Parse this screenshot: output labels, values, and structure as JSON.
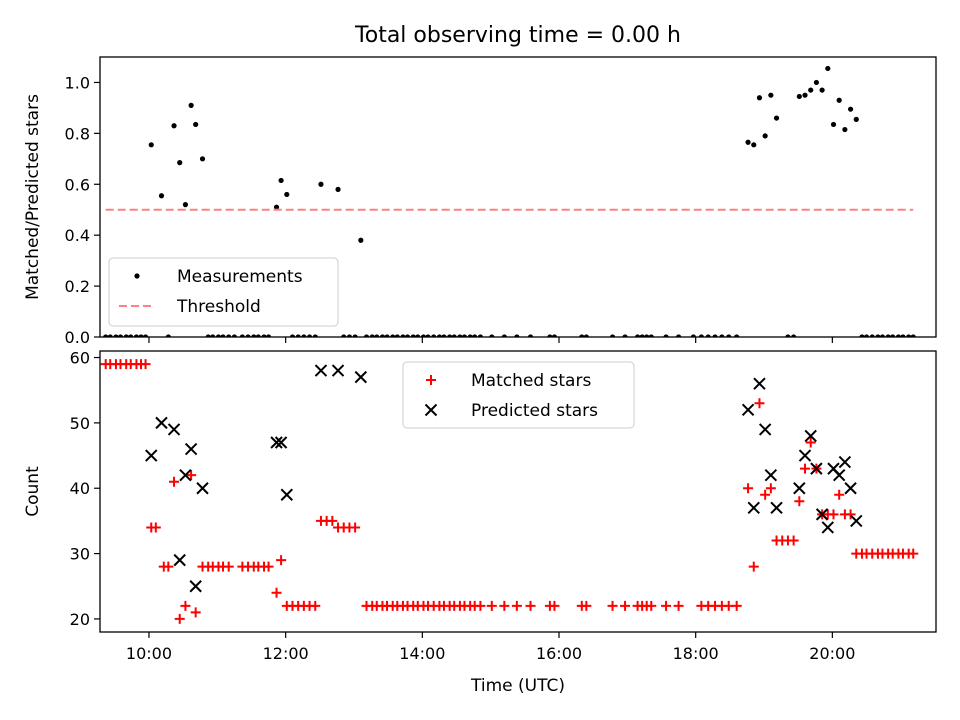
{
  "chart_data": [
    {
      "type": "scatter",
      "title": "Total observing time = 0.00 h",
      "xlabel": "",
      "ylabel": "Matched/Predicted stars",
      "xlim": [
        "09:17",
        "21:31"
      ],
      "ylim": [
        0,
        1.1
      ],
      "yticks": [
        "0.0",
        "0.2",
        "0.4",
        "0.6",
        "0.8",
        "1.0"
      ],
      "xticks": [
        "10:00",
        "12:00",
        "14:00",
        "16:00",
        "18:00",
        "20:00"
      ],
      "legend_position": "lower-left",
      "series": [
        {
          "name": "Measurements",
          "marker": "dot",
          "color": "#000000",
          "points": [
            [
              "10:02",
              0.755
            ],
            [
              "10:11",
              0.555
            ],
            [
              "10:22",
              0.83
            ],
            [
              "10:27",
              0.685
            ],
            [
              "10:32",
              0.52
            ],
            [
              "10:37",
              0.91
            ],
            [
              "10:41",
              0.835
            ],
            [
              "10:47",
              0.7
            ],
            [
              "11:52",
              0.51
            ],
            [
              "11:56",
              0.615
            ],
            [
              "12:01",
              0.56
            ],
            [
              "12:31",
              0.6
            ],
            [
              "12:46",
              0.58
            ],
            [
              "13:06",
              0.38
            ],
            [
              "18:46",
              0.765
            ],
            [
              "18:51",
              0.755
            ],
            [
              "18:56",
              0.94
            ],
            [
              "19:01",
              0.79
            ],
            [
              "19:06",
              0.95
            ],
            [
              "19:11",
              0.86
            ],
            [
              "19:31",
              0.945
            ],
            [
              "19:36",
              0.95
            ],
            [
              "19:41",
              0.97
            ],
            [
              "19:46",
              1.0
            ],
            [
              "19:51",
              0.97
            ],
            [
              "19:56",
              1.055
            ],
            [
              "20:01",
              0.835
            ],
            [
              "20:06",
              0.93
            ],
            [
              "20:11",
              0.815
            ],
            [
              "20:16",
              0.895
            ],
            [
              "20:21",
              0.855
            ]
          ],
          "zeros": [
            "09:22",
            "09:26",
            "09:31",
            "09:35",
            "09:40",
            "09:44",
            "09:49",
            "09:53",
            "09:57",
            "10:17",
            "10:52",
            "10:56",
            "11:01",
            "11:05",
            "11:10",
            "11:15",
            "11:22",
            "11:27",
            "11:32",
            "11:36",
            "11:41",
            "11:45",
            "12:06",
            "12:11",
            "12:16",
            "12:21",
            "12:26",
            "12:51",
            "12:56",
            "13:01",
            "13:11",
            "13:16",
            "13:20",
            "13:25",
            "13:29",
            "13:34",
            "13:38",
            "13:43",
            "13:47",
            "13:52",
            "13:56",
            "14:01",
            "14:05",
            "14:10",
            "14:15",
            "14:19",
            "14:24",
            "14:28",
            "14:33",
            "14:37",
            "14:42",
            "14:46",
            "14:51",
            "15:01",
            "15:12",
            "15:23",
            "15:35",
            "15:52",
            "15:56",
            "16:20",
            "16:24",
            "16:47",
            "16:58",
            "17:09",
            "17:13",
            "17:17",
            "17:21",
            "17:34",
            "17:45",
            "17:58",
            "18:05",
            "18:11",
            "18:17",
            "18:23",
            "18:29",
            "18:36",
            "19:21",
            "19:26",
            "20:26",
            "20:30",
            "20:35",
            "20:40",
            "20:44",
            "20:49",
            "20:53",
            "20:58",
            "21:02",
            "21:07",
            "21:11"
          ]
        },
        {
          "name": "Threshold",
          "line": "dashed",
          "color": "#ff8080",
          "y": 0.5,
          "x_range": [
            "09:22",
            "21:11"
          ]
        }
      ]
    },
    {
      "type": "scatter",
      "title": "",
      "xlabel": "Time (UTC)",
      "ylabel": "Count",
      "xlim": [
        "09:17",
        "21:31"
      ],
      "ylim": [
        18,
        61
      ],
      "yticks": [
        "20",
        "30",
        "40",
        "50",
        "60"
      ],
      "xticks": [
        "10:00",
        "12:00",
        "14:00",
        "16:00",
        "18:00",
        "20:00"
      ],
      "legend_position": "upper-center",
      "series": [
        {
          "name": "Matched stars",
          "marker": "plus",
          "color": "#ff0000",
          "points": [
            [
              "09:22",
              59
            ],
            [
              "09:26",
              59
            ],
            [
              "09:31",
              59
            ],
            [
              "09:35",
              59
            ],
            [
              "09:40",
              59
            ],
            [
              "09:44",
              59
            ],
            [
              "09:49",
              59
            ],
            [
              "09:53",
              59
            ],
            [
              "09:57",
              59
            ],
            [
              "10:02",
              34
            ],
            [
              "10:06",
              34
            ],
            [
              "10:13",
              28
            ],
            [
              "10:17",
              28
            ],
            [
              "10:22",
              41
            ],
            [
              "10:27",
              20
            ],
            [
              "10:32",
              22
            ],
            [
              "10:37",
              42
            ],
            [
              "10:41",
              21
            ],
            [
              "10:47",
              28
            ],
            [
              "10:52",
              28
            ],
            [
              "10:56",
              28
            ],
            [
              "11:01",
              28
            ],
            [
              "11:05",
              28
            ],
            [
              "11:10",
              28
            ],
            [
              "11:22",
              28
            ],
            [
              "11:27",
              28
            ],
            [
              "11:32",
              28
            ],
            [
              "11:36",
              28
            ],
            [
              "11:41",
              28
            ],
            [
              "11:45",
              28
            ],
            [
              "11:52",
              24
            ],
            [
              "11:56",
              29
            ],
            [
              "12:01",
              22
            ],
            [
              "12:06",
              22
            ],
            [
              "12:11",
              22
            ],
            [
              "12:16",
              22
            ],
            [
              "12:21",
              22
            ],
            [
              "12:26",
              22
            ],
            [
              "12:31",
              35
            ],
            [
              "12:36",
              35
            ],
            [
              "12:41",
              35
            ],
            [
              "12:46",
              34
            ],
            [
              "12:51",
              34
            ],
            [
              "12:56",
              34
            ],
            [
              "13:01",
              34
            ],
            [
              "13:11",
              22
            ],
            [
              "13:16",
              22
            ],
            [
              "13:20",
              22
            ],
            [
              "13:25",
              22
            ],
            [
              "13:29",
              22
            ],
            [
              "13:34",
              22
            ],
            [
              "13:38",
              22
            ],
            [
              "13:43",
              22
            ],
            [
              "13:47",
              22
            ],
            [
              "13:52",
              22
            ],
            [
              "13:56",
              22
            ],
            [
              "14:01",
              22
            ],
            [
              "14:05",
              22
            ],
            [
              "14:10",
              22
            ],
            [
              "14:15",
              22
            ],
            [
              "14:19",
              22
            ],
            [
              "14:24",
              22
            ],
            [
              "14:28",
              22
            ],
            [
              "14:33",
              22
            ],
            [
              "14:37",
              22
            ],
            [
              "14:42",
              22
            ],
            [
              "14:46",
              22
            ],
            [
              "14:51",
              22
            ],
            [
              "15:01",
              22
            ],
            [
              "15:12",
              22
            ],
            [
              "15:23",
              22
            ],
            [
              "15:35",
              22
            ],
            [
              "15:52",
              22
            ],
            [
              "15:56",
              22
            ],
            [
              "16:20",
              22
            ],
            [
              "16:24",
              22
            ],
            [
              "16:47",
              22
            ],
            [
              "16:58",
              22
            ],
            [
              "17:09",
              22
            ],
            [
              "17:13",
              22
            ],
            [
              "17:17",
              22
            ],
            [
              "17:21",
              22
            ],
            [
              "17:34",
              22
            ],
            [
              "17:45",
              22
            ],
            [
              "18:05",
              22
            ],
            [
              "18:11",
              22
            ],
            [
              "18:17",
              22
            ],
            [
              "18:23",
              22
            ],
            [
              "18:29",
              22
            ],
            [
              "18:36",
              22
            ],
            [
              "18:46",
              40
            ],
            [
              "18:51",
              28
            ],
            [
              "18:56",
              53
            ],
            [
              "19:01",
              39
            ],
            [
              "19:06",
              40
            ],
            [
              "19:11",
              32
            ],
            [
              "19:16",
              32
            ],
            [
              "19:21",
              32
            ],
            [
              "19:26",
              32
            ],
            [
              "19:31",
              38
            ],
            [
              "19:36",
              43
            ],
            [
              "19:41",
              47
            ],
            [
              "19:46",
              43
            ],
            [
              "19:51",
              36
            ],
            [
              "19:56",
              36
            ],
            [
              "20:01",
              36
            ],
            [
              "20:06",
              39
            ],
            [
              "20:11",
              36
            ],
            [
              "20:16",
              36
            ],
            [
              "20:21",
              30
            ],
            [
              "20:26",
              30
            ],
            [
              "20:30",
              30
            ],
            [
              "20:35",
              30
            ],
            [
              "20:40",
              30
            ],
            [
              "20:44",
              30
            ],
            [
              "20:49",
              30
            ],
            [
              "20:53",
              30
            ],
            [
              "20:58",
              30
            ],
            [
              "21:02",
              30
            ],
            [
              "21:07",
              30
            ],
            [
              "21:11",
              30
            ]
          ]
        },
        {
          "name": "Predicted stars",
          "marker": "x",
          "color": "#000000",
          "points": [
            [
              "10:02",
              45
            ],
            [
              "10:11",
              50
            ],
            [
              "10:22",
              49
            ],
            [
              "10:27",
              29
            ],
            [
              "10:32",
              42
            ],
            [
              "10:37",
              46
            ],
            [
              "10:41",
              25
            ],
            [
              "10:47",
              40
            ],
            [
              "11:52",
              47
            ],
            [
              "11:56",
              47
            ],
            [
              "12:01",
              39
            ],
            [
              "12:31",
              58
            ],
            [
              "12:46",
              58
            ],
            [
              "13:06",
              57
            ],
            [
              "18:46",
              52
            ],
            [
              "18:51",
              37
            ],
            [
              "18:56",
              56
            ],
            [
              "19:01",
              49
            ],
            [
              "19:06",
              42
            ],
            [
              "19:11",
              37
            ],
            [
              "19:31",
              40
            ],
            [
              "19:36",
              45
            ],
            [
              "19:41",
              48
            ],
            [
              "19:46",
              43
            ],
            [
              "19:51",
              36
            ],
            [
              "19:56",
              34
            ],
            [
              "20:01",
              43
            ],
            [
              "20:06",
              42
            ],
            [
              "20:11",
              44
            ],
            [
              "20:16",
              40
            ],
            [
              "20:21",
              35
            ]
          ]
        }
      ]
    }
  ]
}
